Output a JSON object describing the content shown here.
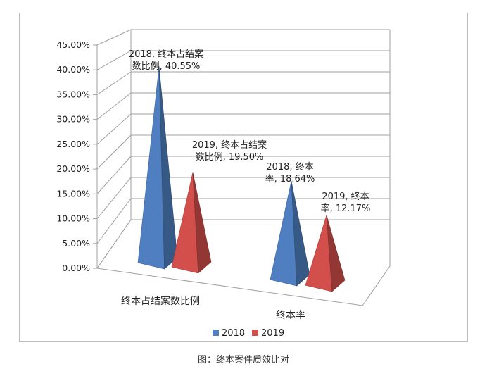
{
  "chart_data": {
    "type": "bar",
    "style": "3d-pyramid",
    "categories": [
      "终本占结案数比例",
      "终本率"
    ],
    "series": [
      {
        "name": "2018",
        "values": [
          40.55,
          18.64
        ],
        "color": "#4f7fc0"
      },
      {
        "name": "2019",
        "values": [
          19.5,
          12.17
        ],
        "color": "#d24f4b"
      }
    ],
    "y_unit": "%",
    "ylim": [
      0,
      45
    ],
    "y_ticks": [
      "0.00%",
      "5.00%",
      "10.00%",
      "15.00%",
      "20.00%",
      "25.00%",
      "30.00%",
      "35.00%",
      "40.00%",
      "45.00%"
    ],
    "grid": true,
    "legend_position": "bottom",
    "data_labels": [
      [
        "2018, 终本占结案",
        "数比例, 40.55%"
      ],
      [
        "2019, 终本占结案",
        "数比例, 19.50%"
      ],
      [
        "2018, 终本",
        "率, 18.64%"
      ],
      [
        "2019, 终本",
        "率, 12.17%"
      ]
    ]
  },
  "caption": "图：终本案件质效比对"
}
